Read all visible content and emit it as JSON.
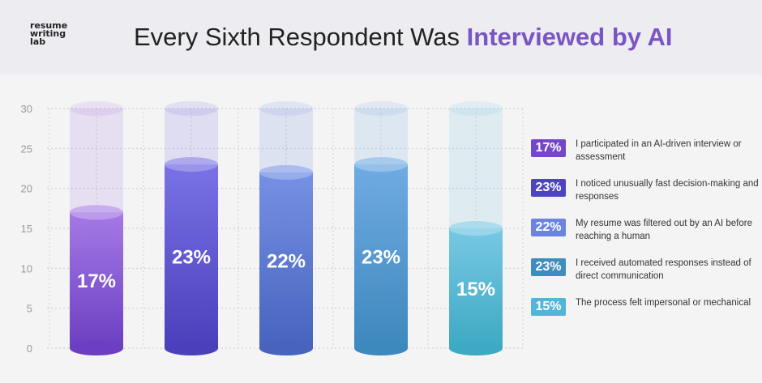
{
  "logo": {
    "text_lines": [
      "resume",
      "writing",
      "lab"
    ]
  },
  "header": {
    "title_plain": "Every Sixth Respondent Was ",
    "title_highlight": "Interviewed by AI"
  },
  "chart_data": {
    "type": "bar",
    "style": "cylinder",
    "ylim": [
      0,
      30
    ],
    "yticks": [
      "0",
      "5",
      "10",
      "15",
      "20",
      "25",
      "30"
    ],
    "grid": true,
    "values": [
      17,
      23,
      22,
      23,
      15
    ],
    "labels": [
      "17%",
      "23%",
      "22%",
      "23%",
      "15%"
    ],
    "colors": [
      [
        "#a57ae6",
        "#6c3fc2"
      ],
      [
        "#7a72e6",
        "#4a40bb"
      ],
      [
        "#7691e4",
        "#4763bd"
      ],
      [
        "#70abe3",
        "#3d88bd"
      ],
      [
        "#78c8e4",
        "#3ea9c3"
      ]
    ],
    "legend_placement": "right",
    "legend": [
      {
        "value": "17%",
        "text": "I participated in an AI-driven interview or assessment",
        "color": "#7446c8"
      },
      {
        "value": "23%",
        "text": "I noticed unusually fast decision-making and responses",
        "color": "#4d44c4"
      },
      {
        "value": "22%",
        "text": "My resume was filtered out by an AI before reaching a human",
        "color": "#6a84e0"
      },
      {
        "value": "23%",
        "text": "I received automated responses instead of direct communication",
        "color": "#3e8dbf"
      },
      {
        "value": "15%",
        "text": "The process felt impersonal or mechanical",
        "color": "#53b5d8"
      }
    ]
  }
}
